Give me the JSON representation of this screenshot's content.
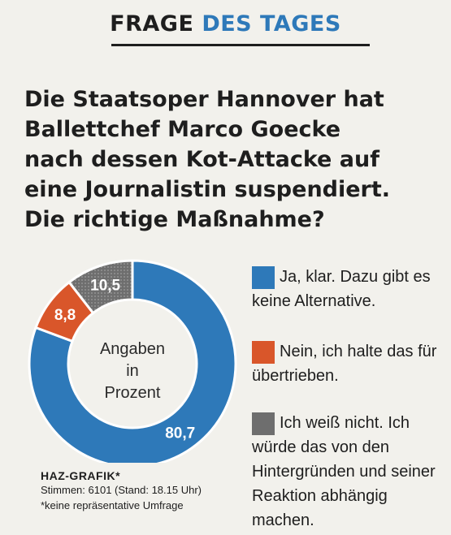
{
  "header": {
    "word1": "FRAGE",
    "word2": "DES TAGES"
  },
  "question": {
    "lines": [
      "Die Staatsoper Hannover hat",
      "Ballettchef Marco Goecke",
      "nach dessen Kot-Attacke auf",
      "eine Journalistin suspendiert.",
      "Die richtige Maßnahme?"
    ]
  },
  "chart_data": {
    "type": "pie",
    "variant": "donut",
    "center_label": [
      "Angaben",
      "in",
      "Prozent"
    ],
    "slices": [
      {
        "label": "Ja, klar. Dazu gibt es keine Alternative.",
        "value": 80.7,
        "value_label": "80,7",
        "color": "#2e79b9"
      },
      {
        "label": "Nein, ich halte das für übertrieben.",
        "value": 8.8,
        "value_label": "8,8",
        "color": "#d9562a"
      },
      {
        "label": "Ich weiß nicht. Ich würde das von den Hintergründen und seiner Reaktion abhängig machen.",
        "value": 10.5,
        "value_label": "10,5",
        "color": "#6e6e6e"
      }
    ],
    "legend_position": "right"
  },
  "source": {
    "title": "HAZ-GRAFIK*",
    "votes": "Stimmen: 6101 (Stand: 18.15 Uhr)",
    "note": "*keine repräsentative Umfrage"
  }
}
